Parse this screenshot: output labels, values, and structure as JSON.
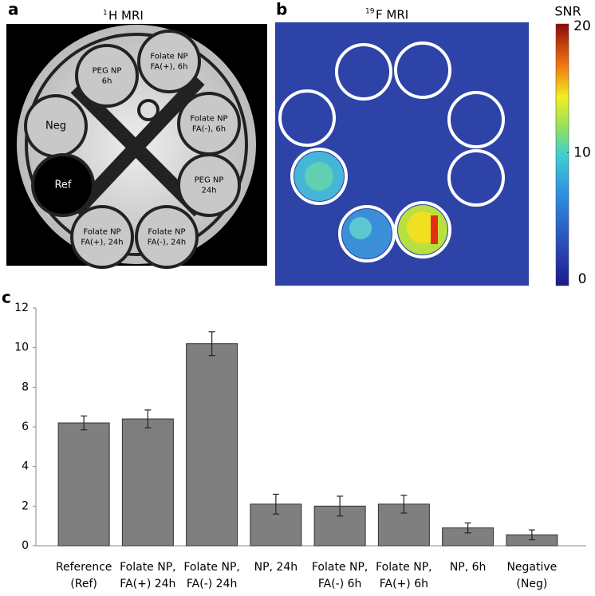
{
  "panel_a": {
    "letter": "a",
    "title": {
      "superscript": "1",
      "text": "H MRI"
    },
    "labels": [
      [
        "PEG NP",
        "6h"
      ],
      [
        "Folate NP",
        "FA(+), 6h"
      ],
      [
        "Neg"
      ],
      [
        "Folate NP",
        "FA(-), 6h"
      ],
      [
        "Ref"
      ],
      [
        "PEG NP",
        "24h"
      ],
      [
        "Folate NP",
        "FA(+), 24h"
      ],
      [
        "Folate NP",
        "FA(-), 24h"
      ]
    ]
  },
  "panel_b": {
    "letter": "b",
    "title": {
      "superscript": "19",
      "text": "F MRI"
    },
    "colorbar": {
      "label": "SNR",
      "lim": [
        0,
        20
      ],
      "ticks": [
        0,
        10,
        20
      ]
    }
  },
  "chart_data": {
    "type": "bar",
    "letter": "c",
    "categories": [
      [
        "Reference",
        "(Ref)"
      ],
      [
        "Folate NP,",
        "FA(+) 24h"
      ],
      [
        "Folate NP,",
        "FA(-) 24h"
      ],
      [
        "NP, 24h"
      ],
      [
        "Folate NP,",
        "FA(-) 6h"
      ],
      [
        "Folate NP,",
        "FA(+) 6h"
      ],
      [
        "NP, 6h"
      ],
      [
        "Negative",
        "(Neg)"
      ]
    ],
    "values": [
      6.2,
      6.4,
      10.2,
      2.1,
      2.0,
      2.1,
      0.9,
      0.55
    ],
    "errors": [
      0.35,
      0.45,
      0.6,
      0.5,
      0.5,
      0.45,
      0.25,
      0.25
    ],
    "color": "#7f7f7f",
    "ylim": [
      0,
      12
    ],
    "yticks": [
      0,
      2,
      4,
      6,
      8,
      10,
      12
    ]
  }
}
